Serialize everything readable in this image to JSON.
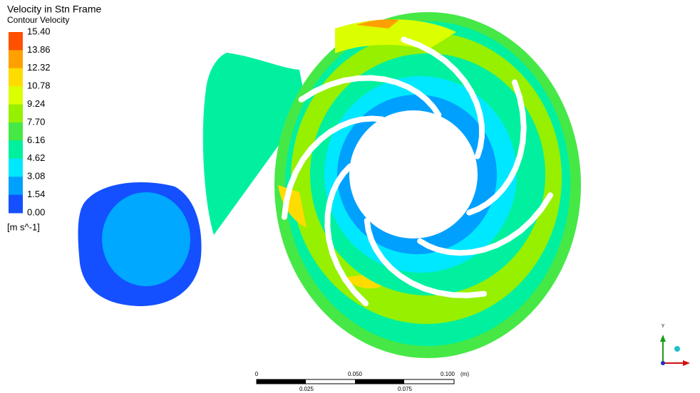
{
  "legend": {
    "title": "Velocity in Stn Frame",
    "subtitle": "Contour Velocity",
    "levels": [
      "15.40",
      "13.86",
      "12.32",
      "10.78",
      "9.24",
      "7.70",
      "6.16",
      "4.62",
      "3.08",
      "1.54",
      "0.00"
    ],
    "band_colors": [
      "#ff5000",
      "#ffa000",
      "#ffdc00",
      "#dcff00",
      "#96f000",
      "#46e846",
      "#00f0a0",
      "#00e8ff",
      "#00a0ff",
      "#1450ff"
    ],
    "unit": "[m s^-1]"
  },
  "scale_bar": {
    "top_labels": [
      "0",
      "0.050",
      "0.100"
    ],
    "unit": "(m)",
    "bottom_labels": [
      "0.025",
      "0.075"
    ]
  },
  "triad": {
    "y_label": "Y"
  }
}
